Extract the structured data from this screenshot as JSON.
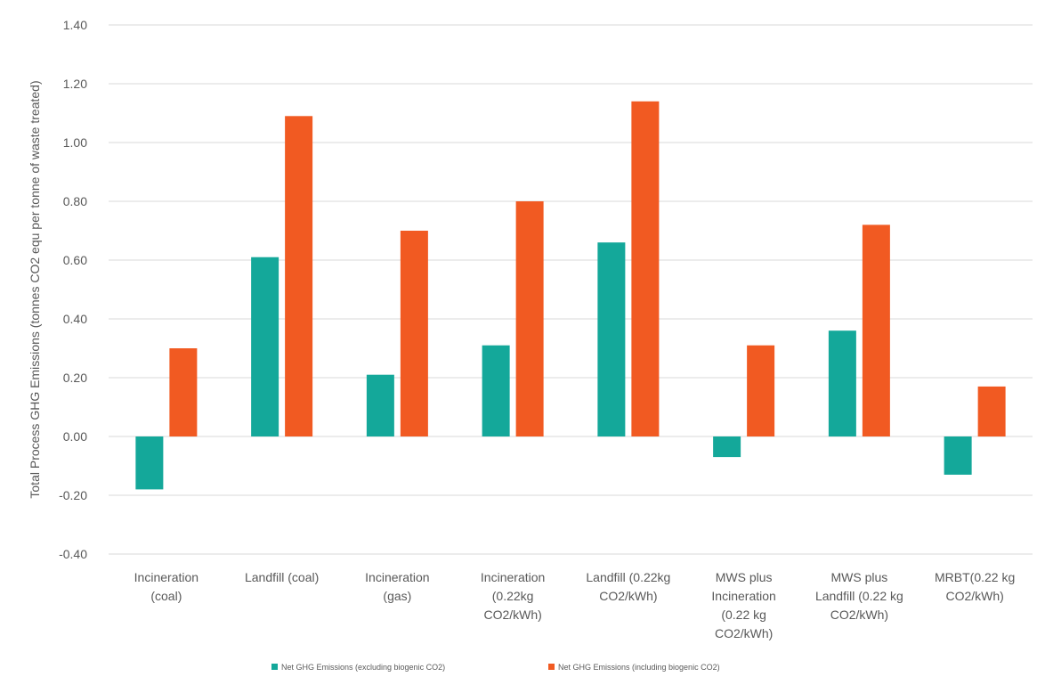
{
  "chart_data": {
    "type": "bar",
    "title": "",
    "xlabel": "",
    "ylabel": "Total Process GHG Emissions (tonnes CO2 equ per tonne of waste treated)",
    "ylim": [
      -0.4,
      1.4
    ],
    "yticks": [
      "1.40",
      "1.20",
      "1.00",
      "0.80",
      "0.60",
      "0.40",
      "0.20",
      "0.00",
      "-0.20",
      "-0.40"
    ],
    "ytick_values": [
      1.4,
      1.2,
      1.0,
      0.8,
      0.6,
      0.4,
      0.2,
      0.0,
      -0.2,
      -0.4
    ],
    "grid": true,
    "legend_position": "bottom",
    "categories": [
      [
        "Incineration",
        "(coal)"
      ],
      [
        "Landfill (coal)"
      ],
      [
        "Incineration",
        "(gas)"
      ],
      [
        "Incineration",
        "(0.22kg",
        "CO2/kWh)"
      ],
      [
        "Landfill (0.22kg",
        "CO2/kWh)"
      ],
      [
        "MWS plus",
        "Incineration",
        "(0.22 kg",
        "CO2/kWh)"
      ],
      [
        "MWS plus",
        "Landfill (0.22 kg",
        "CO2/kWh)"
      ],
      [
        "MRBT(0.22 kg",
        "CO2/kWh)"
      ]
    ],
    "series": [
      {
        "name": "Net GHG Emissions (excluding biogenic CO2)",
        "color": "#14A89A",
        "values": [
          -0.18,
          0.61,
          0.21,
          0.31,
          0.66,
          -0.07,
          0.36,
          -0.13
        ]
      },
      {
        "name": "Net GHG Emissions (including biogenic CO2)",
        "color": "#F15A22",
        "values": [
          0.3,
          1.09,
          0.7,
          0.8,
          1.14,
          0.31,
          0.72,
          0.17
        ]
      }
    ]
  }
}
